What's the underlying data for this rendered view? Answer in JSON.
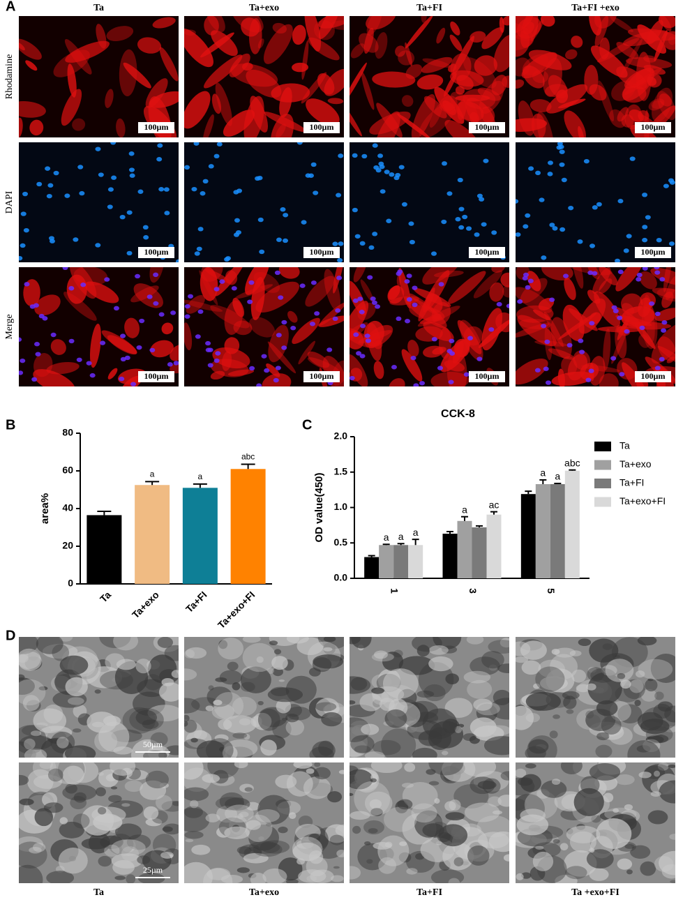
{
  "panel_labels": [
    "A",
    "B",
    "C",
    "D"
  ],
  "fluorescence": {
    "columns": [
      "Ta",
      "Ta+exo",
      "Ta+FI",
      "Ta+FI +exo"
    ],
    "rows": [
      "Rhodamine",
      "DAPI",
      "Merge"
    ],
    "scale_bar": "100µm"
  },
  "chart_data": [
    {
      "type": "bar",
      "ylabel": "area%",
      "categories": [
        "Ta",
        "Ta+exo",
        "Ta+FI",
        "Ta+exo+FI"
      ],
      "values": [
        36.5,
        52.5,
        51,
        61
      ],
      "errors": [
        2,
        1.8,
        2,
        2.5
      ],
      "colors": [
        "#000000",
        "#f0bb83",
        "#0e7f96",
        "#ff8200"
      ],
      "significance": [
        null,
        "a",
        "a",
        "abc"
      ],
      "ylim": [
        0,
        80
      ],
      "yticks": [
        0,
        20,
        40,
        60,
        80
      ]
    },
    {
      "type": "grouped_bar",
      "title": "CCK-8",
      "ylabel": "OD value(450)",
      "categories": [
        "1",
        "3",
        "5"
      ],
      "series": [
        {
          "name": "Ta",
          "color": "#000000",
          "values": [
            0.3,
            0.63,
            1.19
          ],
          "errors": [
            0.02,
            0.03,
            0.04
          ],
          "significance": [
            null,
            null,
            null
          ]
        },
        {
          "name": "Ta+exo",
          "color": "#a0a0a0",
          "values": [
            0.47,
            0.81,
            1.33
          ],
          "errors": [
            0.01,
            0.06,
            0.06
          ],
          "significance": [
            "a",
            "a",
            "a"
          ]
        },
        {
          "name": "Ta+FI",
          "color": "#7a7a7a",
          "values": [
            0.47,
            0.72,
            1.33
          ],
          "errors": [
            0.02,
            0.02,
            0.01
          ],
          "significance": [
            "a",
            null,
            "a"
          ]
        },
        {
          "name": "Ta+exo+FI",
          "color": "#d9d9d9",
          "values": [
            0.47,
            0.9,
            1.52
          ],
          "errors": [
            0.08,
            0.04,
            0.01
          ],
          "significance": [
            "a",
            "ac",
            "abc"
          ]
        }
      ],
      "ylim": [
        0,
        2
      ],
      "yticks": [
        {
          "value": 0,
          "label": "0.0"
        },
        0.5,
        {
          "value": 1,
          "label": "1.0"
        },
        1.5,
        {
          "value": 2,
          "label": "2.0"
        }
      ]
    }
  ],
  "sem": {
    "columns": [
      "Ta",
      "Ta+exo",
      "Ta+FI",
      "Ta +exo+FI"
    ],
    "scale_bars": [
      "50µm",
      "25µm"
    ]
  }
}
